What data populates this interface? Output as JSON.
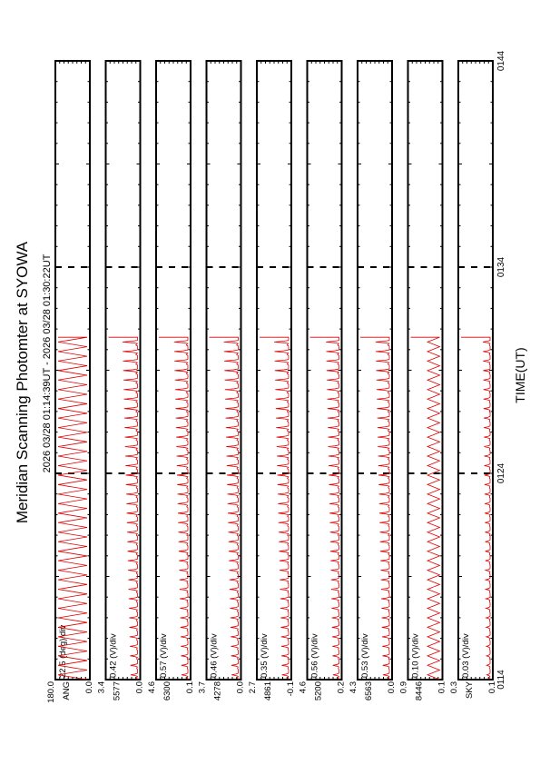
{
  "title": "Meridian Scanning Photomter at SYOWA",
  "time_range": "2026 03/28 01:14:39UT - 2026 03/28 01:30:22UT",
  "xlabel": "TIME(UT)",
  "x_ticks": [
    "0114",
    "0124",
    "0134",
    "0144"
  ],
  "chart_data": {
    "type": "line",
    "x_unit": "minutes since 01:14 UT",
    "x_range": [
      0,
      30
    ],
    "signal_end": 16.6,
    "panels": [
      {
        "channel": "ANG",
        "scale": "22.5 (deg)/div",
        "y_top": "180.0",
        "y_bottom": "0.0",
        "shape": "triangle",
        "cycles": 36,
        "amp": 1.0
      },
      {
        "channel": "5577",
        "scale": "0.42 (V)/div",
        "y_top": "3.4",
        "y_bottom": "0.0",
        "shape": "spike",
        "cycles": 36,
        "amp": 0.52
      },
      {
        "channel": "6300",
        "scale": "0.57 (V)/div",
        "y_top": "4.6",
        "y_bottom": "0.1",
        "shape": "spike",
        "cycles": 36,
        "amp": 0.48
      },
      {
        "channel": "4278",
        "scale": "0.46 (V)/div",
        "y_top": "3.7",
        "y_bottom": "0.0",
        "shape": "spike",
        "cycles": 36,
        "amp": 0.5
      },
      {
        "channel": "4861",
        "scale": "0.35 (V)/div",
        "y_top": "2.7",
        "y_bottom": "-0.1",
        "shape": "spike",
        "cycles": 36,
        "amp": 0.5
      },
      {
        "channel": "5200",
        "scale": "0.56 (V)/div",
        "y_top": "4.6",
        "y_bottom": "0.2",
        "shape": "spike",
        "cycles": 36,
        "amp": 0.45
      },
      {
        "channel": "6563",
        "scale": "0.53 (V)/div",
        "y_top": "4.3",
        "y_bottom": "0.0",
        "shape": "spike",
        "cycles": 36,
        "amp": 0.48
      },
      {
        "channel": "8446",
        "scale": "0.10 (V)/div",
        "y_top": "0.9",
        "y_bottom": "0.1",
        "shape": "triangle",
        "cycles": 36,
        "amp": 0.42
      },
      {
        "channel": "SKY",
        "scale": "0.03 (V)/div",
        "y_top": "0.3",
        "y_bottom": "0.1",
        "shape": "spike",
        "cycles": 36,
        "amp": 0.25
      }
    ]
  }
}
